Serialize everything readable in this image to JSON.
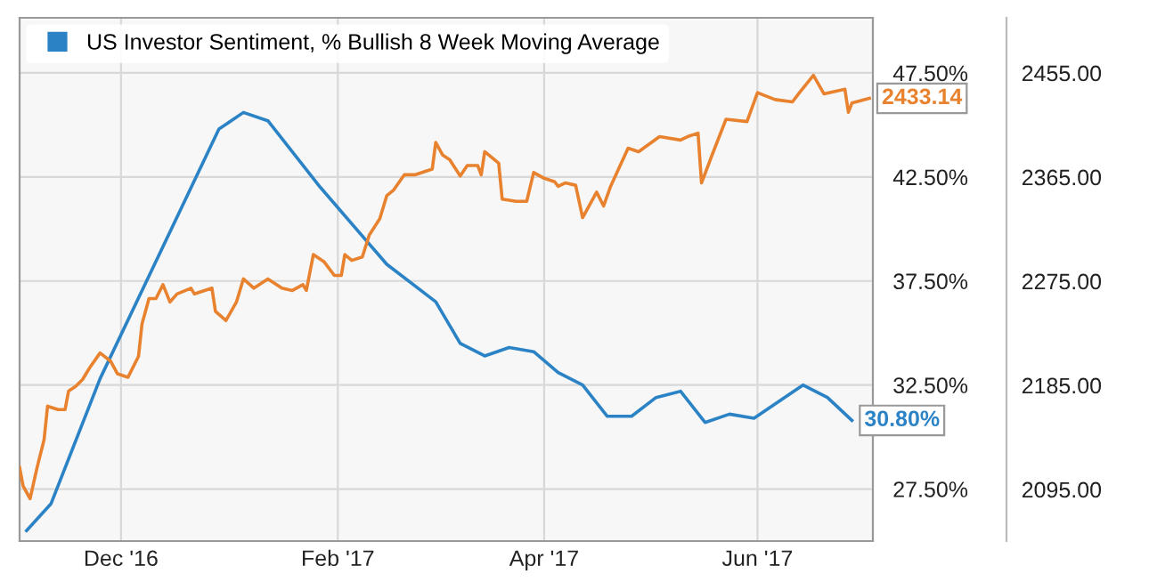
{
  "chart_data": {
    "type": "line",
    "legend": "top left",
    "grid": true,
    "marker": "none",
    "line_style": "solid",
    "xlim": [
      "2016-11-02",
      "2017-07-04"
    ],
    "xticks": [
      {
        "value": "2016-12-01",
        "label": "Dec '16"
      },
      {
        "value": "2017-02-01",
        "label": "Feb '17"
      },
      {
        "value": "2017-04-01",
        "label": "Apr '17"
      },
      {
        "value": "2017-06-01",
        "label": "Jun '17"
      }
    ],
    "ylim": [
      25.0,
      50.15
    ],
    "yticks": [
      {
        "value": 27.5,
        "label": "27.50%"
      },
      {
        "value": 32.5,
        "label": "32.50%"
      },
      {
        "value": 37.5,
        "label": "37.50%"
      },
      {
        "value": 42.5,
        "label": "42.50%"
      },
      {
        "value": 47.5,
        "label": "47.50%"
      }
    ],
    "y2lim": [
      2050.4,
      2502.7
    ],
    "y2ticks": [
      {
        "value": 2095,
        "label": "2095.00"
      },
      {
        "value": 2185,
        "label": "2185.00"
      },
      {
        "value": 2275,
        "label": "2275.00"
      },
      {
        "value": 2365,
        "label": "2365.00"
      },
      {
        "value": 2455,
        "label": "2455.00"
      }
    ],
    "series": [
      {
        "name": "US Investor Sentiment, % Bullish 8 Week Moving Average",
        "color": "#2b83c6",
        "x": [
          "2016-11-04",
          "2016-11-11",
          "2016-11-25",
          "2016-12-29",
          "2017-01-05",
          "2017-01-12",
          "2017-01-27",
          "2017-02-15",
          "2017-03-01",
          "2017-03-08",
          "2017-03-15",
          "2017-03-22",
          "2017-03-29",
          "2017-04-05",
          "2017-04-12",
          "2017-04-19",
          "2017-04-26",
          "2017-05-03",
          "2017-05-10",
          "2017-05-17",
          "2017-05-24",
          "2017-05-31",
          "2017-06-14",
          "2017-06-21",
          "2017-06-28"
        ],
        "values": [
          25.5,
          26.8,
          32.8,
          44.8,
          45.6,
          45.2,
          42.0,
          38.3,
          36.5,
          34.5,
          33.9,
          34.3,
          34.1,
          33.1,
          32.5,
          31.0,
          31.0,
          31.9,
          32.2,
          30.7,
          31.1,
          30.9,
          32.5,
          31.9,
          30.8
        ],
        "value_labels": [
          null,
          null,
          null,
          null,
          null,
          null,
          null,
          null,
          null,
          null,
          null,
          null,
          null,
          null,
          null,
          null,
          null,
          null,
          null,
          null,
          null,
          null,
          null,
          null,
          "30.80%"
        ]
      },
      {
        "color": "#e8822e",
        "axis": "y2",
        "x": [
          "2016-11-02",
          "2016-11-03",
          "2016-11-05",
          "2016-11-07",
          "2016-11-09",
          "2016-11-10",
          "2016-11-13",
          "2016-11-15",
          "2016-11-16",
          "2016-11-18",
          "2016-11-20",
          "2016-11-22",
          "2016-11-25",
          "2016-11-28",
          "2016-11-30",
          "2016-12-03",
          "2016-12-06",
          "2016-12-07",
          "2016-12-09",
          "2016-12-11",
          "2016-12-13",
          "2016-12-15",
          "2016-12-17",
          "2016-12-21",
          "2016-12-22",
          "2016-12-27",
          "2016-12-28",
          "2016-12-31",
          "2017-01-03",
          "2017-01-05",
          "2017-01-08",
          "2017-01-12",
          "2017-01-16",
          "2017-01-19",
          "2017-01-22",
          "2017-01-23",
          "2017-01-25",
          "2017-01-28",
          "2017-01-31",
          "2017-02-02",
          "2017-02-03",
          "2017-02-05",
          "2017-02-08",
          "2017-02-10",
          "2017-02-13",
          "2017-02-15",
          "2017-02-17",
          "2017-02-20",
          "2017-02-23",
          "2017-02-28",
          "2017-03-01",
          "2017-03-03",
          "2017-03-05",
          "2017-03-08",
          "2017-03-10",
          "2017-03-13",
          "2017-03-14",
          "2017-03-15",
          "2017-03-19",
          "2017-03-20",
          "2017-03-24",
          "2017-03-27",
          "2017-03-29",
          "2017-04-01",
          "2017-04-04",
          "2017-04-05",
          "2017-04-07",
          "2017-04-10",
          "2017-04-12",
          "2017-04-16",
          "2017-04-18",
          "2017-04-20",
          "2017-04-25",
          "2017-04-28",
          "2017-05-04",
          "2017-05-10",
          "2017-05-12",
          "2017-05-15",
          "2017-05-16",
          "2017-05-19",
          "2017-05-23",
          "2017-05-29",
          "2017-06-01",
          "2017-06-06",
          "2017-06-11",
          "2017-06-13",
          "2017-06-17",
          "2017-06-20",
          "2017-06-26",
          "2017-06-27",
          "2017-06-28",
          "2017-07-03"
        ],
        "values": [
          2114,
          2098,
          2087,
          2114,
          2138,
          2167,
          2164,
          2164,
          2180,
          2184,
          2190,
          2200,
          2213,
          2206,
          2195,
          2192,
          2210,
          2238,
          2260,
          2260,
          2272,
          2257,
          2264,
          2269,
          2264,
          2269,
          2249,
          2241,
          2257,
          2277,
          2269,
          2277,
          2269,
          2267,
          2272,
          2267,
          2298,
          2292,
          2280,
          2280,
          2298,
          2293,
          2296,
          2315,
          2329,
          2349,
          2354,
          2367,
          2367,
          2372,
          2395,
          2384,
          2380,
          2366,
          2375,
          2375,
          2367,
          2387,
          2377,
          2346,
          2344,
          2344,
          2369,
          2364,
          2361,
          2357,
          2360,
          2358,
          2330,
          2352,
          2340,
          2357,
          2390,
          2387,
          2400,
          2397,
          2400,
          2403,
          2360,
          2384,
          2415,
          2413,
          2438,
          2432,
          2430,
          2438,
          2453,
          2437,
          2441,
          2421,
          2429,
          2433.14
        ],
        "value_labels": [
          null,
          null,
          null,
          null,
          null,
          null,
          null,
          null,
          null,
          null,
          null,
          null,
          null,
          null,
          null,
          null,
          null,
          null,
          null,
          null,
          null,
          null,
          null,
          null,
          null,
          null,
          null,
          null,
          null,
          null,
          null,
          null,
          null,
          null,
          null,
          null,
          null,
          null,
          null,
          null,
          null,
          null,
          null,
          null,
          null,
          null,
          null,
          null,
          null,
          null,
          null,
          null,
          null,
          null,
          null,
          null,
          null,
          null,
          null,
          null,
          null,
          null,
          null,
          null,
          null,
          null,
          null,
          null,
          null,
          null,
          null,
          null,
          null,
          null,
          null,
          null,
          null,
          null,
          null,
          null,
          null,
          null,
          null,
          null,
          null,
          null,
          null,
          null,
          null,
          null,
          null,
          "2433.14"
        ]
      }
    ]
  }
}
